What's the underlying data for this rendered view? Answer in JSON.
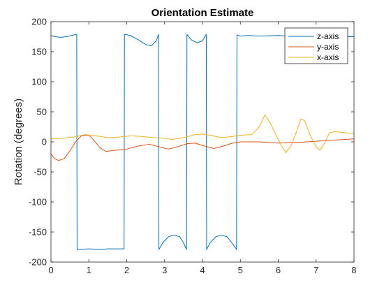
{
  "chart_data": {
    "type": "line",
    "title": "Orientation Estimate",
    "xlabel": "",
    "ylabel": "Rotation (degrees)",
    "xlim": [
      0,
      8
    ],
    "ylim": [
      -200,
      200
    ],
    "xticks": [
      "0",
      "1",
      "2",
      "3",
      "4",
      "5",
      "6",
      "7",
      "8"
    ],
    "yticks": [
      "200",
      "150",
      "100",
      "50",
      "0",
      "-50",
      "-100",
      "-150",
      "-200"
    ],
    "grid": false,
    "legend_position": "top-right",
    "series": [
      {
        "name": "z-axis",
        "color": "#0072BD",
        "points": [
          [
            0.0,
            177
          ],
          [
            0.1,
            175
          ],
          [
            0.25,
            174
          ],
          [
            0.4,
            175
          ],
          [
            0.55,
            177
          ],
          [
            0.68,
            179
          ],
          [
            0.69,
            -179
          ],
          [
            1.0,
            -178
          ],
          [
            1.3,
            -179
          ],
          [
            1.5,
            -178
          ],
          [
            1.93,
            -178
          ],
          [
            1.94,
            179
          ],
          [
            2.1,
            177
          ],
          [
            2.3,
            170
          ],
          [
            2.5,
            162
          ],
          [
            2.65,
            160
          ],
          [
            2.78,
            168
          ],
          [
            2.84,
            179
          ],
          [
            2.85,
            -179
          ],
          [
            2.95,
            -168
          ],
          [
            3.1,
            -158
          ],
          [
            3.25,
            -155
          ],
          [
            3.4,
            -158
          ],
          [
            3.5,
            -168
          ],
          [
            3.58,
            -179
          ],
          [
            3.59,
            179
          ],
          [
            3.7,
            170
          ],
          [
            3.85,
            165
          ],
          [
            4.0,
            168
          ],
          [
            4.1,
            179
          ],
          [
            4.11,
            -179
          ],
          [
            4.2,
            -168
          ],
          [
            4.35,
            -158
          ],
          [
            4.5,
            -155
          ],
          [
            4.65,
            -158
          ],
          [
            4.8,
            -170
          ],
          [
            4.9,
            -179
          ],
          [
            4.91,
            178
          ],
          [
            5.0,
            176
          ],
          [
            5.2,
            177
          ],
          [
            5.5,
            176
          ],
          [
            6.0,
            177
          ],
          [
            6.5,
            175
          ],
          [
            7.0,
            176
          ],
          [
            7.5,
            175
          ],
          [
            8.0,
            175
          ]
        ]
      },
      {
        "name": "y-axis",
        "color": "#D95319",
        "points": [
          [
            0.0,
            -20
          ],
          [
            0.1,
            -28
          ],
          [
            0.2,
            -31
          ],
          [
            0.35,
            -28
          ],
          [
            0.5,
            -15
          ],
          [
            0.65,
            0
          ],
          [
            0.8,
            10
          ],
          [
            1.0,
            11
          ],
          [
            1.1,
            5
          ],
          [
            1.3,
            -10
          ],
          [
            1.45,
            -16
          ],
          [
            1.7,
            -14
          ],
          [
            2.0,
            -12
          ],
          [
            2.3,
            -7
          ],
          [
            2.6,
            -4
          ],
          [
            2.9,
            -9
          ],
          [
            3.1,
            -12
          ],
          [
            3.3,
            -9
          ],
          [
            3.6,
            -3
          ],
          [
            3.8,
            -2
          ],
          [
            4.0,
            -6
          ],
          [
            4.3,
            -11
          ],
          [
            4.5,
            -8
          ],
          [
            4.8,
            -2
          ],
          [
            5.0,
            0
          ],
          [
            5.5,
            0
          ],
          [
            6.0,
            -2
          ],
          [
            6.3,
            -1
          ],
          [
            6.5,
            -1
          ],
          [
            7.0,
            1
          ],
          [
            7.5,
            3
          ],
          [
            8.0,
            5
          ]
        ]
      },
      {
        "name": "x-axis",
        "color": "#EDB120",
        "points": [
          [
            0.0,
            5
          ],
          [
            0.3,
            6
          ],
          [
            0.6,
            8
          ],
          [
            0.9,
            12
          ],
          [
            1.2,
            10
          ],
          [
            1.5,
            7
          ],
          [
            1.8,
            8
          ],
          [
            2.1,
            10
          ],
          [
            2.4,
            9
          ],
          [
            2.7,
            7
          ],
          [
            3.0,
            6
          ],
          [
            3.2,
            4
          ],
          [
            3.5,
            7
          ],
          [
            3.8,
            12
          ],
          [
            4.0,
            13
          ],
          [
            4.2,
            11
          ],
          [
            4.5,
            7
          ],
          [
            4.8,
            9
          ],
          [
            5.0,
            11
          ],
          [
            5.3,
            12
          ],
          [
            5.5,
            25
          ],
          [
            5.65,
            45
          ],
          [
            5.8,
            30
          ],
          [
            5.95,
            10
          ],
          [
            6.1,
            -8
          ],
          [
            6.2,
            -18
          ],
          [
            6.35,
            -5
          ],
          [
            6.5,
            20
          ],
          [
            6.6,
            38
          ],
          [
            6.7,
            35
          ],
          [
            6.85,
            10
          ],
          [
            7.0,
            -8
          ],
          [
            7.1,
            -14
          ],
          [
            7.2,
            -5
          ],
          [
            7.35,
            15
          ],
          [
            7.5,
            17
          ],
          [
            7.8,
            15
          ],
          [
            8.0,
            14
          ]
        ]
      }
    ]
  }
}
